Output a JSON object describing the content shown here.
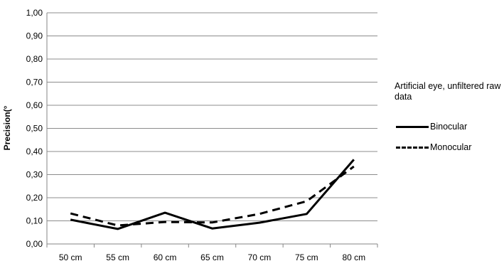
{
  "chart_data": {
    "type": "line",
    "title": "",
    "xlabel": "",
    "ylabel": "Precision(°",
    "categories": [
      "50 cm",
      "55 cm",
      "60 cm",
      "65 cm",
      "70 cm",
      "75 cm",
      "80 cm"
    ],
    "ylim": [
      0,
      1
    ],
    "yticks": [
      "0,00",
      "0,10",
      "0,20",
      "0,30",
      "0,40",
      "0,50",
      "0,60",
      "0,70",
      "0,80",
      "0,90",
      "1,00"
    ],
    "grid": true,
    "legend_position": "right",
    "legend_title": "Artificial eye, unfiltered raw data",
    "series": [
      {
        "name": "Binocular",
        "style": "solid",
        "color": "#000000",
        "values": [
          0.105,
          0.065,
          0.135,
          0.067,
          0.092,
          0.13,
          0.365
        ]
      },
      {
        "name": "Monocular",
        "style": "dashed",
        "color": "#000000",
        "values": [
          0.132,
          0.08,
          0.095,
          0.093,
          0.13,
          0.185,
          0.335
        ]
      }
    ]
  }
}
